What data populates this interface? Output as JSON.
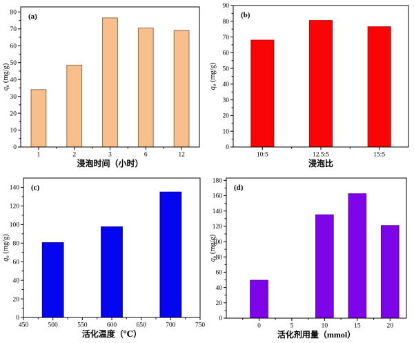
{
  "figure": {
    "background": "#ffffff",
    "axis_color": "#000000",
    "ylabel_parts": {
      "var": "q",
      "sub": "e",
      "unit": "(mg/g)"
    }
  },
  "chart_data": [
    {
      "id": "a",
      "panel_label": "(a)",
      "type": "bar",
      "categories": [
        "1",
        "2",
        "3",
        "6",
        "12"
      ],
      "values": [
        34,
        48.5,
        76.5,
        70.5,
        69
      ],
      "title": "",
      "xlabel": "浸泡时间（小时）",
      "ylabel": "qe (mg/g)",
      "ylim": [
        0,
        83
      ],
      "yticks": [
        0,
        10,
        20,
        30,
        40,
        50,
        60,
        70,
        80
      ],
      "y_minor_step": 5,
      "grid": false,
      "legend": "none",
      "bar_fill": "#F8BE8C",
      "bar_stroke": "#8A6D50",
      "bar_frac": 0.42,
      "layout": {
        "l": 30,
        "t": 10,
        "r": 289,
        "b": 213
      }
    },
    {
      "id": "b",
      "panel_label": "(b)",
      "type": "bar",
      "categories": [
        "10:5",
        "12.5:5",
        "15:5"
      ],
      "values": [
        68,
        80.5,
        76.5
      ],
      "title": "",
      "xlabel": "浸泡比",
      "ylabel": "qe (mg/g)",
      "ylim": [
        0,
        90
      ],
      "yticks": [
        0,
        10,
        20,
        30,
        40,
        50,
        60,
        70,
        80,
        90
      ],
      "y_minor_step": 5,
      "grid": false,
      "legend": "none",
      "bar_fill": "#FA0505",
      "bar_stroke": "#C40000",
      "bar_frac": 0.39,
      "layout": {
        "l": 38,
        "t": 8,
        "r": 292,
        "b": 213
      }
    },
    {
      "id": "c",
      "panel_label": "(c)",
      "type": "bar",
      "x": [
        500,
        600,
        700
      ],
      "values": [
        80.5,
        97.5,
        135
      ],
      "title": "",
      "xlabel": "活化温度（℃）",
      "ylabel": "qe (mg/g)",
      "xlim": [
        450,
        750
      ],
      "xticks": [
        450,
        500,
        550,
        600,
        650,
        700,
        750
      ],
      "x_minor_step": 25,
      "bar_width_units": 36,
      "ylim": [
        0,
        150
      ],
      "yticks": [
        0,
        20,
        40,
        60,
        80,
        100,
        120,
        140
      ],
      "y_minor_step": 10,
      "grid": false,
      "legend": "none",
      "bar_fill": "#0505F0",
      "bar_stroke": "#000090",
      "layout": {
        "l": 34,
        "t": 10,
        "r": 290,
        "b": 212
      }
    },
    {
      "id": "d",
      "panel_label": "(d)",
      "type": "bar",
      "x": [
        0,
        10,
        15,
        20
      ],
      "values": [
        49.5,
        135,
        162.5,
        121
      ],
      "title": "",
      "xlabel": "活化剂用量（mmol）",
      "ylabel": "qe (mg/g)",
      "xlim": [
        -5,
        22.5
      ],
      "xticks": [
        0,
        5,
        10,
        15,
        20
      ],
      "x_minor_step": 2.5,
      "bar_width_units": 2.7,
      "ylim": [
        0,
        183
      ],
      "yticks": [
        0,
        20,
        40,
        60,
        80,
        100,
        120,
        140,
        160,
        180
      ],
      "y_minor_step": 10,
      "grid": false,
      "legend": "none",
      "bar_fill": "#7D05E8",
      "bar_stroke": "#5A00AE",
      "layout": {
        "l": 28,
        "t": 10,
        "r": 289,
        "b": 213
      }
    }
  ]
}
